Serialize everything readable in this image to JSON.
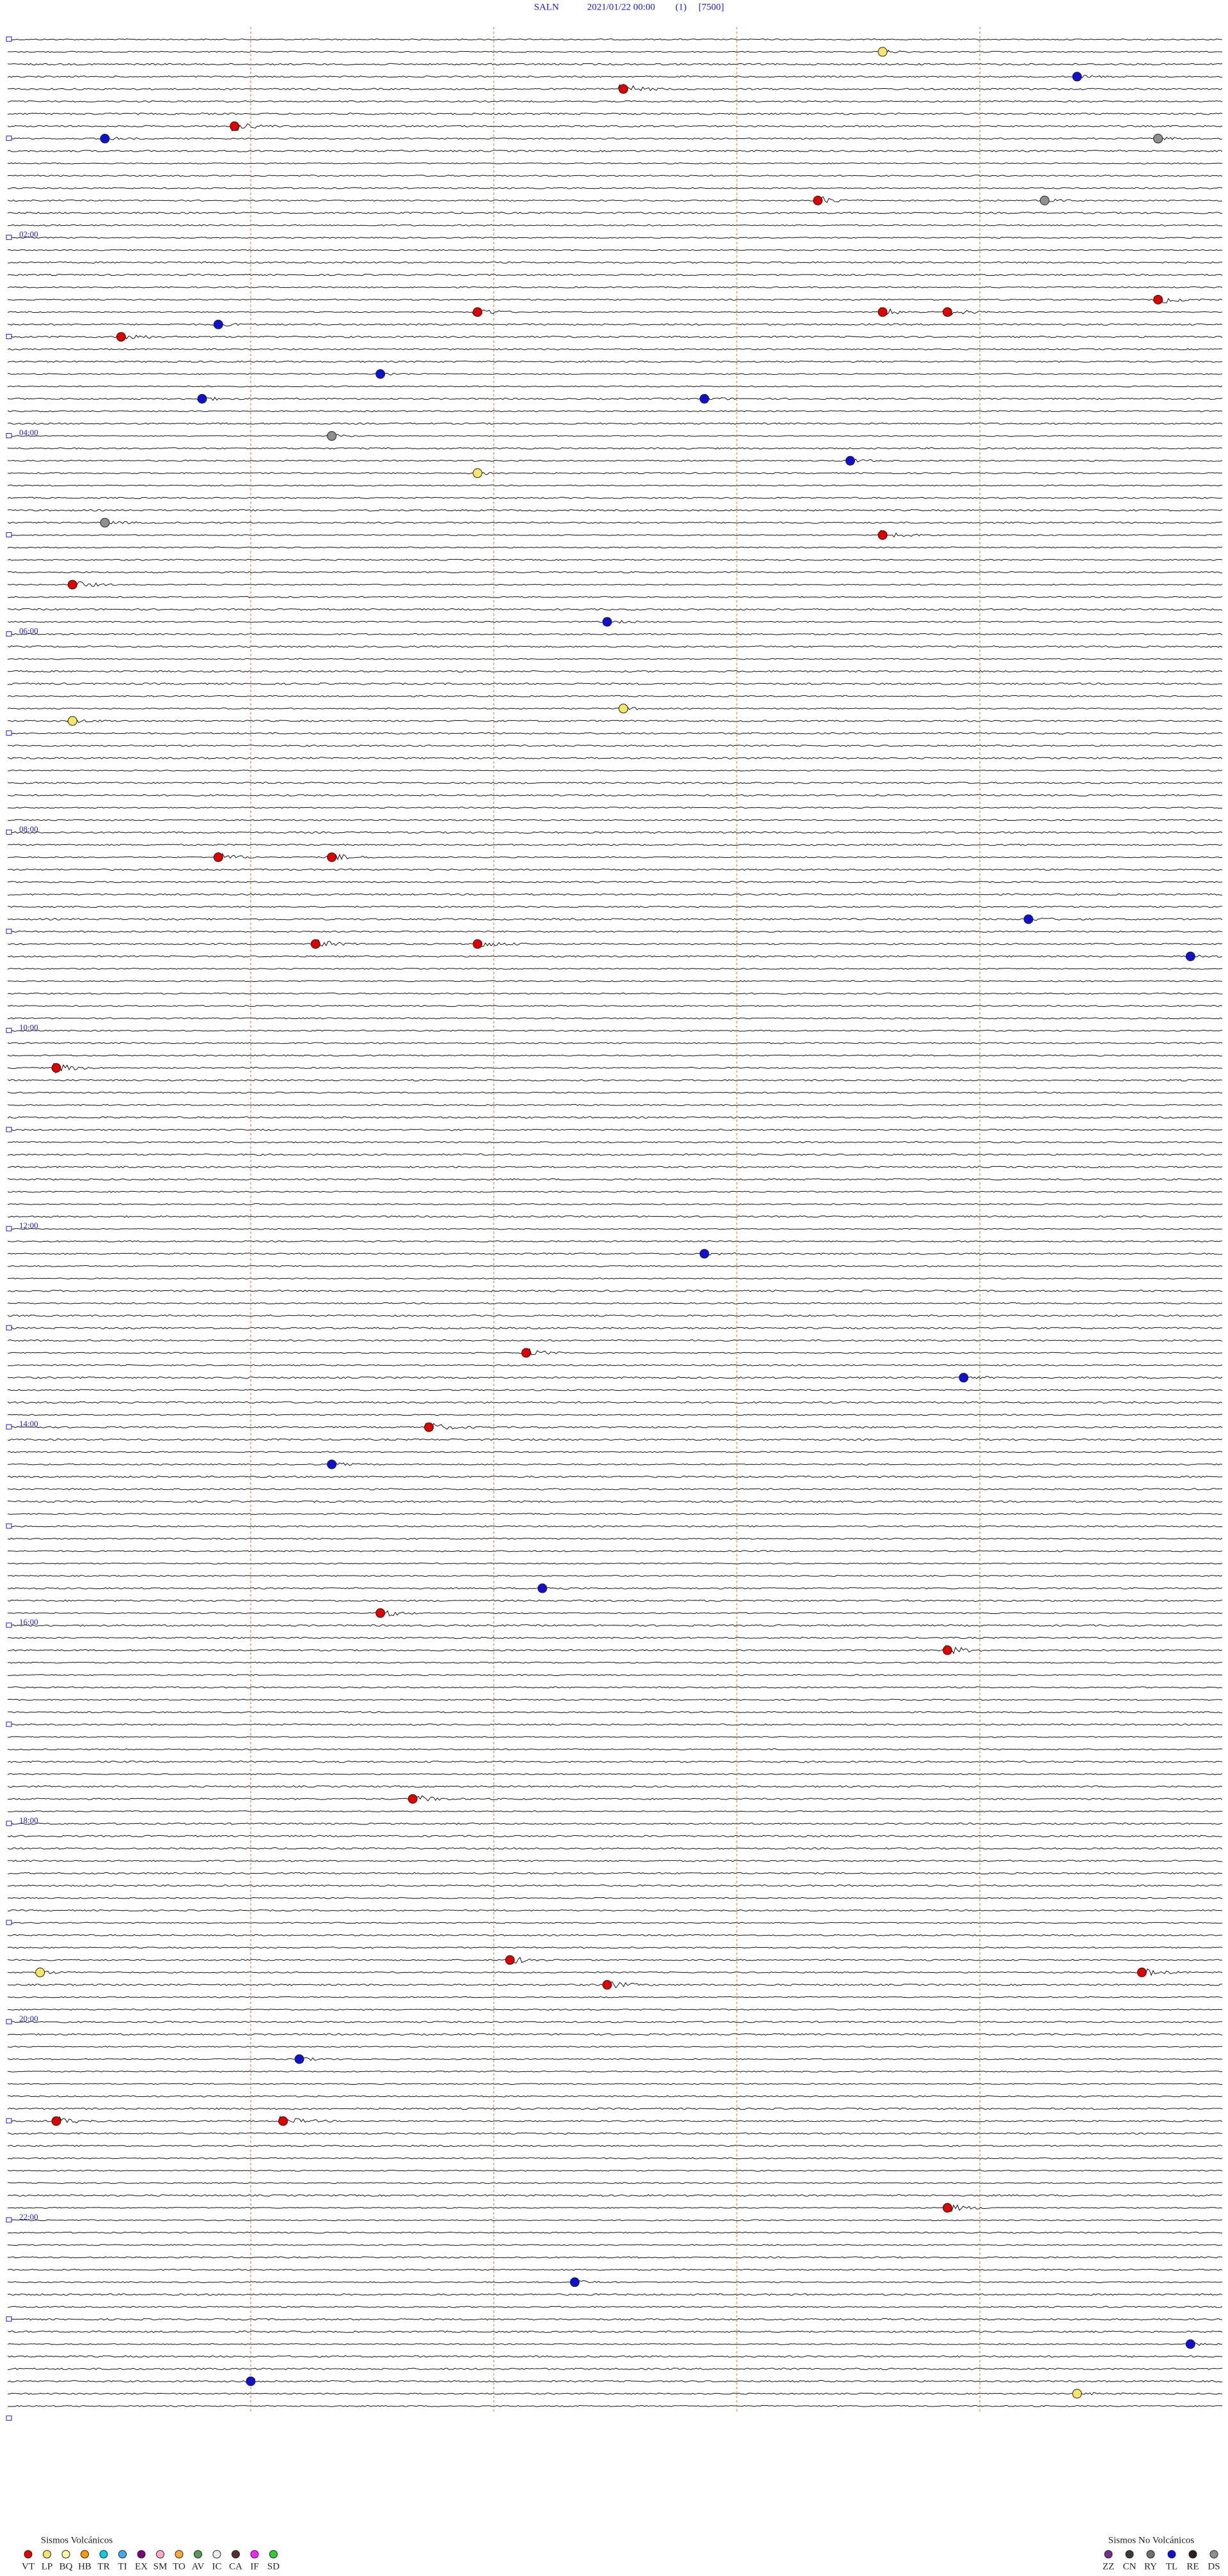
{
  "header": {
    "station": "SALN",
    "datetime": "2021/01/22 00:00",
    "channel": "(1)",
    "scale": "[7500]"
  },
  "hour_labels": [
    "02:00",
    "04:00",
    "06:00",
    "08:00",
    "10:00",
    "12:00",
    "14:00",
    "16:00",
    "18:00",
    "20:00",
    "22:00"
  ],
  "legend": {
    "volcanic": {
      "title": "Sismos Volcánicos",
      "classes": [
        {
          "code": "VT",
          "color": "#e00000"
        },
        {
          "code": "LP",
          "color": "#f5e66a"
        },
        {
          "code": "BQ",
          "color": "#ffffa0"
        },
        {
          "code": "HB",
          "color": "#ff9900"
        },
        {
          "code": "TR",
          "color": "#00d0e0"
        },
        {
          "code": "TI",
          "color": "#44aaee"
        },
        {
          "code": "EX",
          "color": "#800080"
        },
        {
          "code": "SM",
          "color": "#ffaacc"
        },
        {
          "code": "TO",
          "color": "#ffaa33"
        },
        {
          "code": "AV",
          "color": "#559955"
        },
        {
          "code": "IC",
          "color": "#eeeeee"
        },
        {
          "code": "CA",
          "color": "#553333"
        },
        {
          "code": "IF",
          "color": "#ff22ff"
        },
        {
          "code": "SD",
          "color": "#33cc33"
        }
      ]
    },
    "non_volcanic": {
      "title": "Sismos No Volcánicos",
      "classes": [
        {
          "code": "ZZ",
          "color": "#7a2d8f"
        },
        {
          "code": "CN",
          "color": "#3a3a3a"
        },
        {
          "code": "RY",
          "color": "#707070"
        },
        {
          "code": "TL",
          "color": "#1010d0"
        },
        {
          "code": "RE",
          "color": "#2a2020"
        },
        {
          "code": "DS",
          "color": "#909090"
        }
      ]
    }
  },
  "events": [
    {
      "class": "LP",
      "minute": 12.9
    },
    {
      "class": "TL",
      "minute": 29.1
    },
    {
      "class": "VT",
      "minute": 33.8
    },
    {
      "class": "VT",
      "minute": 53.9
    },
    {
      "class": "TL",
      "minute": 60.6
    },
    {
      "class": "DS",
      "minute": 67.1
    },
    {
      "class": "VT",
      "minute": 102.5
    },
    {
      "class": "DS",
      "minute": 103.9
    },
    {
      "class": "VT",
      "minute": 164.6
    },
    {
      "class": "VT",
      "minute": 167.9
    },
    {
      "class": "VT",
      "minute": 170.4
    },
    {
      "class": "VT",
      "minute": 170.8
    },
    {
      "class": "TL",
      "minute": 173.8
    },
    {
      "class": "VT",
      "minute": 180.7
    },
    {
      "class": "TL",
      "minute": 204.8
    },
    {
      "class": "TL",
      "minute": 218.7
    },
    {
      "class": "TL",
      "minute": 221.8
    },
    {
      "class": "DS",
      "minute": 242.0
    },
    {
      "class": "TL",
      "minute": 260.2
    },
    {
      "class": "LP",
      "minute": 265.4
    },
    {
      "class": "DS",
      "minute": 293.1
    },
    {
      "class": "VT",
      "minute": 305.4
    },
    {
      "class": "VT",
      "minute": 330.4
    },
    {
      "class": "TL",
      "minute": 356.2
    },
    {
      "class": "LP",
      "minute": 408.8
    },
    {
      "class": "LP",
      "minute": 412.9
    },
    {
      "class": "VT",
      "minute": 496.3
    },
    {
      "class": "VT",
      "minute": 497.0
    },
    {
      "class": "TL",
      "minute": 538.8
    },
    {
      "class": "VT",
      "minute": 549.4
    },
    {
      "class": "VT",
      "minute": 550.4
    },
    {
      "class": "TL",
      "minute": 562.3
    },
    {
      "class": "VT",
      "minute": 622.8
    },
    {
      "class": "TL",
      "minute": 739.3
    },
    {
      "class": "VT",
      "minute": 798.2
    },
    {
      "class": "TL",
      "minute": 815.9
    },
    {
      "class": "VT",
      "minute": 842.6
    },
    {
      "class": "TL",
      "minute": 864.5
    },
    {
      "class": "TL",
      "minute": 940.8
    },
    {
      "class": "VT",
      "minute": 954.8
    },
    {
      "class": "VT",
      "minute": 980.8
    },
    {
      "class": "VT",
      "minute": 1067.5
    },
    {
      "class": "VT",
      "minute": 1165.6
    },
    {
      "class": "LP",
      "minute": 1170.2
    },
    {
      "class": "VT",
      "minute": 1177.0
    },
    {
      "class": "VT",
      "minute": 1181.2
    },
    {
      "class": "TL",
      "minute": 1224.3
    },
    {
      "class": "VT",
      "minute": 1260.3
    },
    {
      "class": "VT",
      "minute": 1261.7
    },
    {
      "class": "VT",
      "minute": 1318.3
    },
    {
      "class": "TL",
      "minute": 1361.0
    },
    {
      "class": "TL",
      "minute": 1402.3
    },
    {
      "class": "TL",
      "minute": 1419.0
    },
    {
      "class": "LP",
      "minute": 1431.6
    }
  ]
}
